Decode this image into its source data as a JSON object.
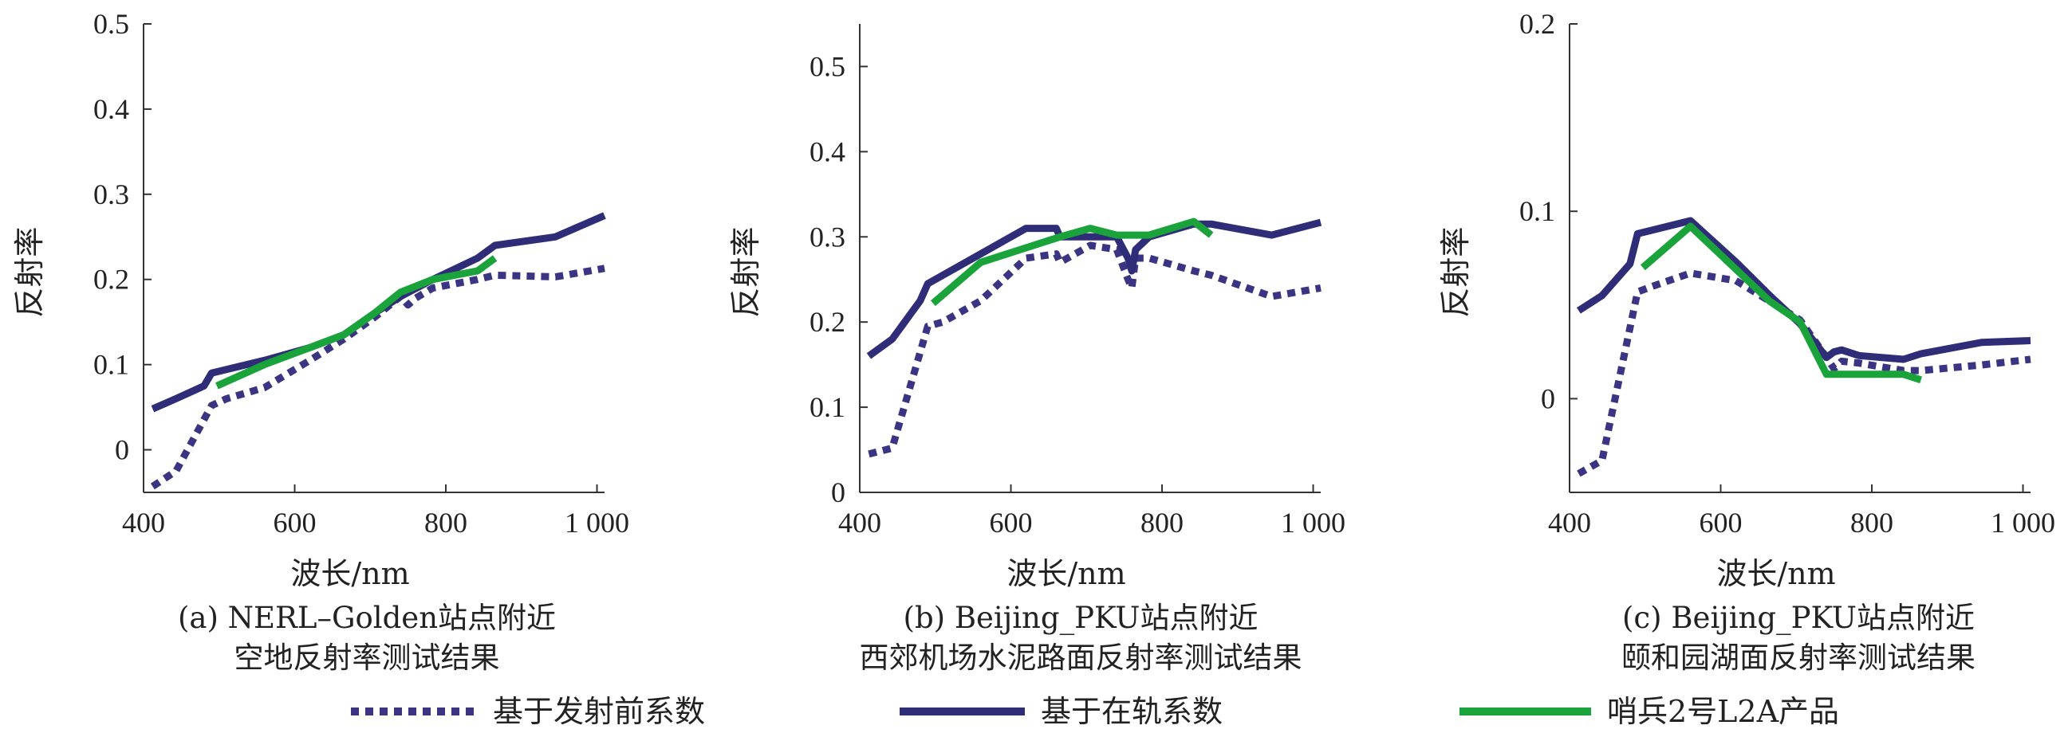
{
  "colors": {
    "prelaunch": "#3b3483",
    "onorbit": "#2f2d78",
    "sentinel": "#1aa33a",
    "axis": "#333333"
  },
  "legend": [
    {
      "label": "基于发射前系数",
      "style": "dotted",
      "color_key": "prelaunch"
    },
    {
      "label": "基于在轨系数",
      "style": "solid",
      "color_key": "onorbit"
    },
    {
      "label": "哨兵2号L2A产品",
      "style": "solid",
      "color_key": "sentinel"
    }
  ],
  "chart_data": [
    {
      "type": "line",
      "caption_line1": "(a) NERL–Golden站点附近",
      "caption_line2": "空地反射率测试结果",
      "xlabel": "波长/nm",
      "ylabel": "反射率",
      "xlim": [
        400,
        1010
      ],
      "ylim": [
        -0.05,
        0.5
      ],
      "xticks": [
        {
          "v": 400,
          "t": "400"
        },
        {
          "v": 600,
          "t": "600"
        },
        {
          "v": 800,
          "t": "800"
        },
        {
          "v": 1000,
          "t": "1 000"
        }
      ],
      "yticks": [
        {
          "v": 0,
          "t": "0"
        },
        {
          "v": 0.1,
          "t": "0.1"
        },
        {
          "v": 0.2,
          "t": "0.2"
        },
        {
          "v": 0.3,
          "t": "0.3"
        },
        {
          "v": 0.4,
          "t": "0.4"
        },
        {
          "v": 0.5,
          "t": "0.5"
        }
      ],
      "series": [
        {
          "name": "基于发射前系数",
          "style": "dotted",
          "color_key": "prelaunch",
          "points": [
            [
              412,
              -0.043
            ],
            [
              443,
              -0.025
            ],
            [
              490,
              0.052
            ],
            [
              510,
              0.06
            ],
            [
              560,
              0.073
            ],
            [
              620,
              0.105
            ],
            [
              665,
              0.13
            ],
            [
              705,
              0.155
            ],
            [
              740,
              0.18
            ],
            [
              750,
              0.17
            ],
            [
              760,
              0.178
            ],
            [
              783,
              0.19
            ],
            [
              842,
              0.2
            ],
            [
              865,
              0.205
            ],
            [
              945,
              0.203
            ],
            [
              1010,
              0.213
            ]
          ]
        },
        {
          "name": "基于在轨系数",
          "style": "solid",
          "color_key": "onorbit",
          "points": [
            [
              412,
              0.048
            ],
            [
              443,
              0.06
            ],
            [
              480,
              0.075
            ],
            [
              490,
              0.09
            ],
            [
              560,
              0.105
            ],
            [
              620,
              0.12
            ],
            [
              665,
              0.135
            ],
            [
              705,
              0.16
            ],
            [
              740,
              0.18
            ],
            [
              783,
              0.2
            ],
            [
              842,
              0.225
            ],
            [
              865,
              0.24
            ],
            [
              945,
              0.25
            ],
            [
              1010,
              0.275
            ]
          ]
        },
        {
          "name": "哨兵2号L2A产品",
          "style": "solid",
          "color_key": "sentinel",
          "points": [
            [
              497,
              0.075
            ],
            [
              560,
              0.1
            ],
            [
              665,
              0.135
            ],
            [
              705,
              0.16
            ],
            [
              740,
              0.185
            ],
            [
              783,
              0.2
            ],
            [
              842,
              0.21
            ],
            [
              865,
              0.225
            ]
          ]
        }
      ]
    },
    {
      "type": "line",
      "caption_line1": "(b) Beijing_PKU站点附近",
      "caption_line2": "西郊机场水泥路面反射率测试结果",
      "xlabel": "波长/nm",
      "ylabel": "反射率",
      "xlim": [
        400,
        1010
      ],
      "ylim": [
        0,
        0.55
      ],
      "xticks": [
        {
          "v": 400,
          "t": "400"
        },
        {
          "v": 600,
          "t": "600"
        },
        {
          "v": 800,
          "t": "800"
        },
        {
          "v": 1000,
          "t": "1 000"
        }
      ],
      "yticks": [
        {
          "v": 0,
          "t": "0"
        },
        {
          "v": 0.1,
          "t": "0.1"
        },
        {
          "v": 0.2,
          "t": "0.2"
        },
        {
          "v": 0.3,
          "t": "0.3"
        },
        {
          "v": 0.4,
          "t": "0.4"
        },
        {
          "v": 0.5,
          "t": "0.5"
        }
      ],
      "series": [
        {
          "name": "基于发射前系数",
          "style": "dotted",
          "color_key": "prelaunch",
          "points": [
            [
              412,
              0.045
            ],
            [
              443,
              0.052
            ],
            [
              490,
              0.195
            ],
            [
              510,
              0.2
            ],
            [
              560,
              0.225
            ],
            [
              620,
              0.275
            ],
            [
              660,
              0.28
            ],
            [
              665,
              0.27
            ],
            [
              705,
              0.29
            ],
            [
              740,
              0.285
            ],
            [
              755,
              0.25
            ],
            [
              760,
              0.24
            ],
            [
              765,
              0.275
            ],
            [
              783,
              0.275
            ],
            [
              842,
              0.26
            ],
            [
              865,
              0.255
            ],
            [
              945,
              0.23
            ],
            [
              1010,
              0.24
            ]
          ]
        },
        {
          "name": "基于在轨系数",
          "style": "solid",
          "color_key": "onorbit",
          "points": [
            [
              412,
              0.16
            ],
            [
              443,
              0.18
            ],
            [
              480,
              0.225
            ],
            [
              490,
              0.245
            ],
            [
              560,
              0.28
            ],
            [
              620,
              0.31
            ],
            [
              660,
              0.31
            ],
            [
              665,
              0.3
            ],
            [
              705,
              0.3
            ],
            [
              740,
              0.3
            ],
            [
              755,
              0.275
            ],
            [
              760,
              0.26
            ],
            [
              765,
              0.285
            ],
            [
              783,
              0.3
            ],
            [
              842,
              0.315
            ],
            [
              865,
              0.315
            ],
            [
              945,
              0.302
            ],
            [
              1010,
              0.317
            ]
          ]
        },
        {
          "name": "哨兵2号L2A产品",
          "style": "solid",
          "color_key": "sentinel",
          "points": [
            [
              497,
              0.222
            ],
            [
              560,
              0.27
            ],
            [
              665,
              0.3
            ],
            [
              705,
              0.31
            ],
            [
              740,
              0.302
            ],
            [
              783,
              0.302
            ],
            [
              842,
              0.318
            ],
            [
              865,
              0.302
            ]
          ]
        }
      ]
    },
    {
      "type": "line",
      "caption_line1": "(c) Beijing_PKU站点附近",
      "caption_line2": "颐和园湖面反射率测试结果",
      "xlabel": "波长/nm",
      "ylabel": "反射率",
      "xlim": [
        400,
        1010
      ],
      "ylim": [
        -0.05,
        0.2
      ],
      "xticks": [
        {
          "v": 400,
          "t": "400"
        },
        {
          "v": 600,
          "t": "600"
        },
        {
          "v": 800,
          "t": "800"
        },
        {
          "v": 1000,
          "t": "1 000"
        }
      ],
      "yticks": [
        {
          "v": 0,
          "t": "0"
        },
        {
          "v": 0.1,
          "t": "0.1"
        },
        {
          "v": 0.2,
          "t": "0.2"
        }
      ],
      "series": [
        {
          "name": "基于发射前系数",
          "style": "dotted",
          "color_key": "prelaunch",
          "points": [
            [
              412,
              -0.04
            ],
            [
              443,
              -0.033
            ],
            [
              490,
              0.057
            ],
            [
              510,
              0.06
            ],
            [
              560,
              0.067
            ],
            [
              620,
              0.063
            ],
            [
              665,
              0.052
            ],
            [
              705,
              0.042
            ],
            [
              740,
              0.022
            ],
            [
              750,
              0.016
            ],
            [
              760,
              0.02
            ],
            [
              783,
              0.019
            ],
            [
              842,
              0.015
            ],
            [
              865,
              0.015
            ],
            [
              945,
              0.018
            ],
            [
              1010,
              0.021
            ]
          ]
        },
        {
          "name": "基于在轨系数",
          "style": "solid",
          "color_key": "onorbit",
          "points": [
            [
              412,
              0.047
            ],
            [
              443,
              0.055
            ],
            [
              480,
              0.072
            ],
            [
              490,
              0.088
            ],
            [
              560,
              0.095
            ],
            [
              620,
              0.073
            ],
            [
              665,
              0.055
            ],
            [
              705,
              0.04
            ],
            [
              740,
              0.022
            ],
            [
              750,
              0.025
            ],
            [
              760,
              0.026
            ],
            [
              783,
              0.023
            ],
            [
              842,
              0.021
            ],
            [
              865,
              0.024
            ],
            [
              945,
              0.03
            ],
            [
              1010,
              0.031
            ]
          ]
        },
        {
          "name": "哨兵2号L2A产品",
          "style": "solid",
          "color_key": "sentinel",
          "points": [
            [
              497,
              0.07
            ],
            [
              560,
              0.092
            ],
            [
              665,
              0.052
            ],
            [
              705,
              0.041
            ],
            [
              740,
              0.013
            ],
            [
              783,
              0.013
            ],
            [
              842,
              0.013
            ],
            [
              865,
              0.01
            ]
          ]
        }
      ]
    }
  ]
}
